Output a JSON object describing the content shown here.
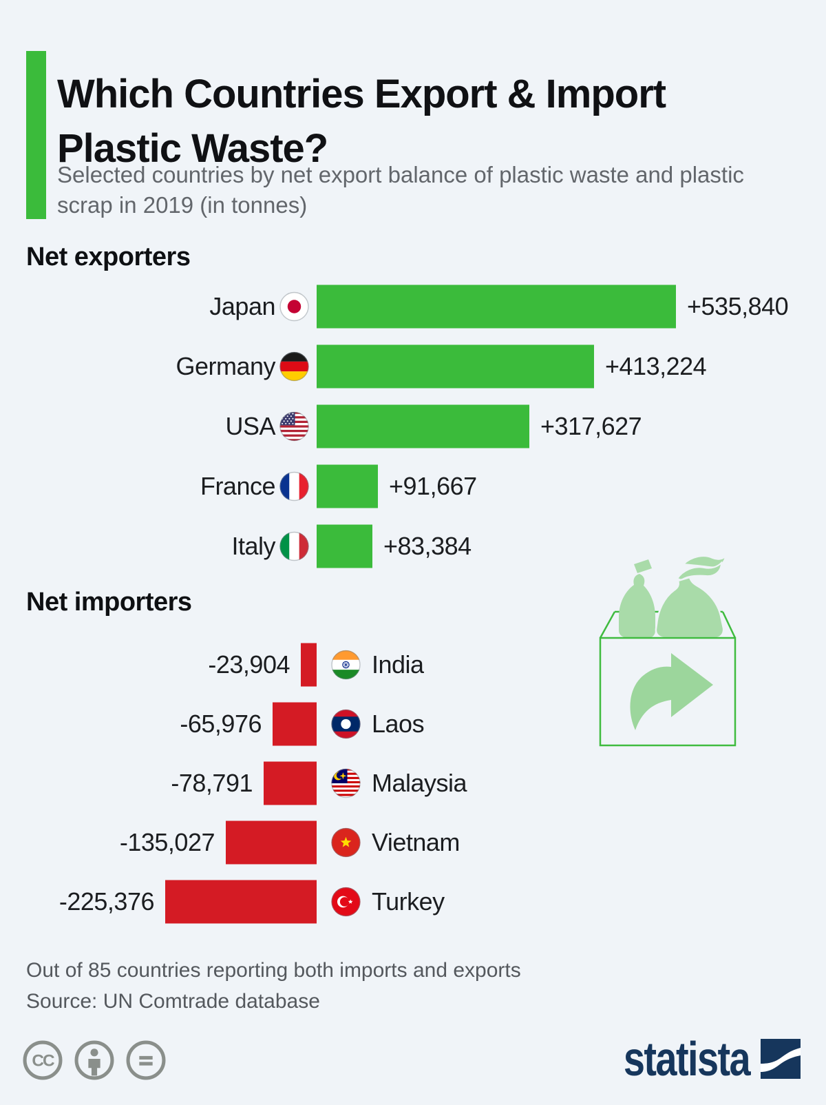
{
  "header": {
    "title": "Which Countries Export & Import Plastic Waste?",
    "subtitle": "Selected countries by net export balance of plastic waste and plastic scrap in 2019 (in tonnes)"
  },
  "chart_data": {
    "type": "bar",
    "orientation": "horizontal",
    "unit": "tonnes",
    "axis_max": 535840,
    "grid": false,
    "exporters": {
      "heading": "Net exporters",
      "bar_color": "#3bbb3b",
      "rows": [
        {
          "country": "Japan",
          "flag": "japan",
          "value": 535840,
          "value_label": "+535,840"
        },
        {
          "country": "Germany",
          "flag": "germany",
          "value": 413224,
          "value_label": "+413,224"
        },
        {
          "country": "USA",
          "flag": "usa",
          "value": 317627,
          "value_label": "+317,627"
        },
        {
          "country": "France",
          "flag": "france",
          "value": 91667,
          "value_label": "+91,667"
        },
        {
          "country": "Italy",
          "flag": "italy",
          "value": 83384,
          "value_label": "+83,384"
        }
      ]
    },
    "importers": {
      "heading": "Net importers",
      "bar_color": "#d41b24",
      "rows": [
        {
          "country": "India",
          "flag": "india",
          "value": -23904,
          "value_label": "-23,904"
        },
        {
          "country": "Laos",
          "flag": "laos",
          "value": -65976,
          "value_label": "-65,976"
        },
        {
          "country": "Malaysia",
          "flag": "malaysia",
          "value": -78791,
          "value_label": "-78,791"
        },
        {
          "country": "Vietnam",
          "flag": "vietnam",
          "value": -135027,
          "value_label": "-135,027"
        },
        {
          "country": "Turkey",
          "flag": "turkey",
          "value": -225376,
          "value_label": "-225,376"
        }
      ]
    }
  },
  "footer": {
    "note": "Out of 85 countries reporting both imports and exports",
    "source": "Source: UN Comtrade database"
  },
  "branding": {
    "wordmark": "statista"
  },
  "license": {
    "icons": [
      "cc-icon",
      "attribution-icon",
      "no-derivatives-icon"
    ]
  },
  "colors": {
    "background": "#f0f4f8",
    "green": "#3bbb3b",
    "red": "#d41b24",
    "navy": "#16365c",
    "illustration_fill": "#a9dba9",
    "illustration_line": "#3fbb3f"
  }
}
